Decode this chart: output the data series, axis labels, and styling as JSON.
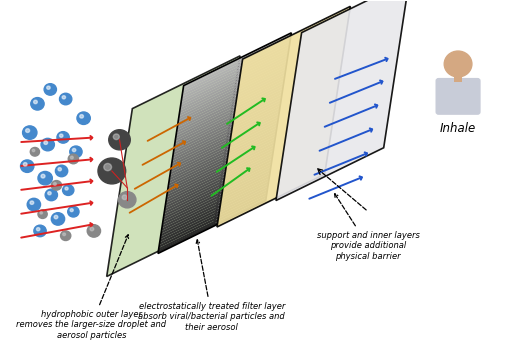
{
  "background_color": "#ffffff",
  "figsize": [
    5.28,
    3.46
  ],
  "dpi": 100,
  "layer1_color": "#c8ddb0",
  "layer2_color_dark": "#282828",
  "layer2_color_light": "#b8b8b8",
  "layer3_color": "#f0e0a0",
  "layer4_color": "#e8e8ec",
  "arrow_red": "#dd2222",
  "arrow_orange": "#cc6600",
  "arrow_green": "#22bb22",
  "arrow_blue": "#2255cc",
  "particle_blue": "#4488cc",
  "particle_gray_dark": "#444444",
  "particle_gray_mid": "#888888",
  "text_color": "#000000",
  "annot_fs": 6.0,
  "inhale_fs": 8.5,
  "layer1_label": "hydrophobic outer layer\nremoves the larger-size droplet and\naerosol particles",
  "layer2_label": "electrostatically treated filter layer\nabsorb viral/bacterial particles and\ntheir aerosol",
  "layer4_label": "support and inner layers\nprovide additional\nphysical barrier",
  "inhale_label": "Inhale"
}
